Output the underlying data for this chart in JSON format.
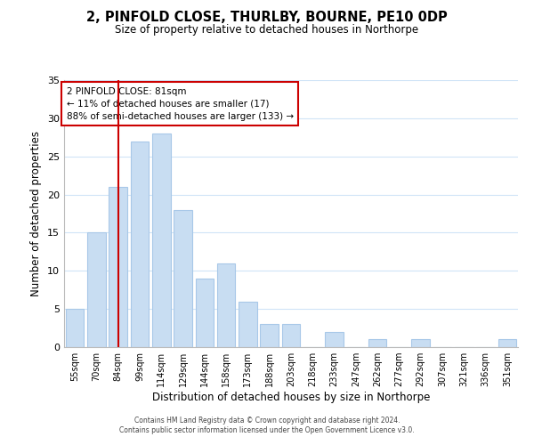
{
  "title": "2, PINFOLD CLOSE, THURLBY, BOURNE, PE10 0DP",
  "subtitle": "Size of property relative to detached houses in Northorpe",
  "xlabel": "Distribution of detached houses by size in Northorpe",
  "ylabel": "Number of detached properties",
  "bar_labels": [
    "55sqm",
    "70sqm",
    "84sqm",
    "99sqm",
    "114sqm",
    "129sqm",
    "144sqm",
    "158sqm",
    "173sqm",
    "188sqm",
    "203sqm",
    "218sqm",
    "233sqm",
    "247sqm",
    "262sqm",
    "277sqm",
    "292sqm",
    "307sqm",
    "321sqm",
    "336sqm",
    "351sqm"
  ],
  "bar_values": [
    5,
    15,
    21,
    27,
    28,
    18,
    9,
    11,
    6,
    3,
    3,
    0,
    2,
    0,
    1,
    0,
    1,
    0,
    0,
    0,
    1
  ],
  "bar_color": "#c8ddf2",
  "bar_edge_color": "#a8c8e8",
  "vline_x": 2,
  "vline_color": "#cc0000",
  "ylim": [
    0,
    35
  ],
  "yticks": [
    0,
    5,
    10,
    15,
    20,
    25,
    30,
    35
  ],
  "annotation_title": "2 PINFOLD CLOSE: 81sqm",
  "annotation_line1": "← 11% of detached houses are smaller (17)",
  "annotation_line2": "88% of semi-detached houses are larger (133) →",
  "annotation_box_color": "#ffffff",
  "annotation_box_edge": "#cc0000",
  "footer1": "Contains HM Land Registry data © Crown copyright and database right 2024.",
  "footer2": "Contains public sector information licensed under the Open Government Licence v3.0.",
  "background_color": "#ffffff",
  "grid_color": "#d0e4f7"
}
